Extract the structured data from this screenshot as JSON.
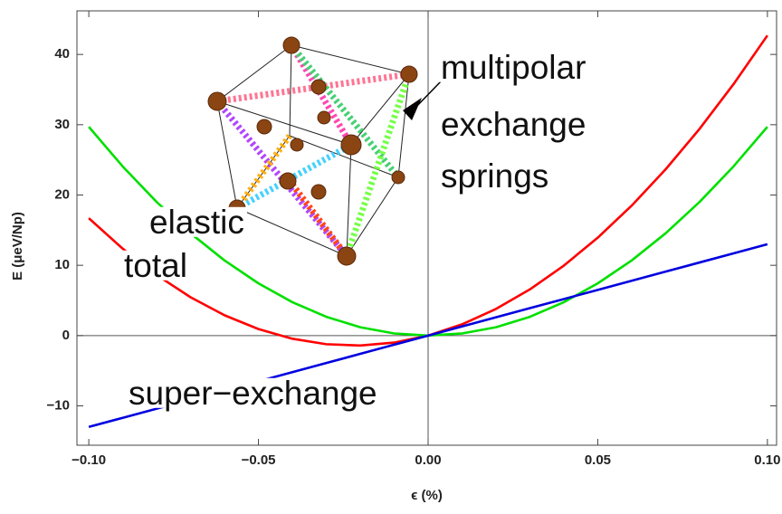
{
  "chart_data": {
    "type": "line",
    "x_label": "ϵ (%)",
    "y_label": "E (μeV/Np)",
    "x": [
      -0.1,
      -0.09,
      -0.08,
      -0.07,
      -0.06,
      -0.05,
      -0.04,
      -0.03,
      -0.02,
      -0.01,
      0,
      0.01,
      0.02,
      0.03,
      0.04,
      0.05,
      0.06,
      0.07,
      0.08,
      0.09,
      0.1
    ],
    "series": [
      {
        "color": "#ff0000",
        "values": [
          16.7,
          12.36,
          8.61,
          5.45,
          2.89,
          0.93,
          -0.45,
          -1.23,
          -1.41,
          -1.0,
          0,
          1.6,
          3.79,
          6.57,
          9.95,
          13.93,
          18.49,
          23.65,
          29.41,
          35.76,
          42.7
        ]
      },
      {
        "color": "#00e000",
        "values": [
          29.7,
          24.06,
          19.01,
          14.55,
          10.69,
          7.43,
          4.75,
          2.67,
          1.19,
          0.3,
          0,
          0.3,
          1.19,
          2.67,
          4.75,
          7.43,
          10.69,
          14.55,
          19.01,
          24.06,
          29.7
        ]
      },
      {
        "color": "#0000e0",
        "values": [
          -13,
          -11.7,
          -10.4,
          -9.1,
          -7.8,
          -6.5,
          -5.2,
          -3.9,
          -2.6,
          -1.3,
          0,
          1.3,
          2.6,
          3.9,
          5.2,
          6.5,
          7.8,
          9.1,
          10.4,
          11.7,
          13
        ]
      }
    ],
    "xlim": [
      -0.1035,
      0.1027
    ],
    "ylim": [
      -15.6,
      46.2
    ],
    "xticks": [
      {
        "value": -0.1,
        "label": "−0.10"
      },
      {
        "value": -0.05,
        "label": "−0.05"
      },
      {
        "value": 0,
        "label": "0.00"
      },
      {
        "value": 0.05,
        "label": "0.05"
      },
      {
        "value": 0.1,
        "label": "0.10"
      }
    ],
    "yticks": [
      {
        "value": -10,
        "label": "−10"
      },
      0,
      10,
      20,
      30,
      40
    ],
    "annotations": [
      "multipolar",
      "exchange",
      "springs",
      "elastic",
      "total",
      "super−exchange"
    ]
  }
}
